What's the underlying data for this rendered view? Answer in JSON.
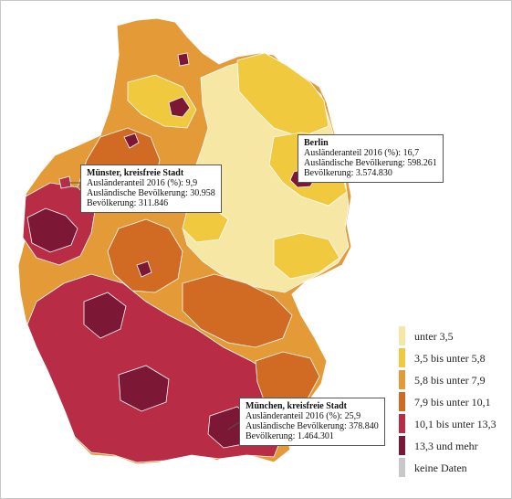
{
  "colors": {
    "c1": "#f6e7a5",
    "c2": "#f1c93e",
    "c3": "#e39a37",
    "c4": "#d16a22",
    "c5": "#b82c46",
    "c6": "#7d1736",
    "nodata": "#c8c8c8"
  },
  "legend": {
    "items": [
      {
        "label": "unter 3,5",
        "color": "#f6e7a5"
      },
      {
        "label": "3,5 bis unter 5,8",
        "color": "#f1c93e"
      },
      {
        "label": "5,8 bis unter 7,9",
        "color": "#e39a37"
      },
      {
        "label": "7,9 bis unter 10,1",
        "color": "#d16a22"
      },
      {
        "label": "10,1 bis unter 13,3",
        "color": "#b82c46"
      },
      {
        "label": "13,3 und mehr",
        "color": "#7d1736"
      },
      {
        "label": "keine Daten",
        "color": "#c8c8c8"
      }
    ]
  },
  "callouts": {
    "berlin": {
      "title": "Berlin",
      "line1": "Ausländeranteil 2016 (%): 16,7",
      "line2": "Ausländische Bevölkerung: 598.261",
      "line3": "Bevölkerung: 3.574.830"
    },
    "muenster": {
      "title": "Münster, kreisfreie Stadt",
      "line1": "Ausländeranteil 2016 (%): 9,9",
      "line2": "Ausländische Bevölkerung: 30.958",
      "line3": "Bevölkerung: 311.846"
    },
    "muenchen": {
      "title": "München, kreisfreie Stadt",
      "line1": "Ausländeranteil 2016 (%): 25,9",
      "line2": "Ausländische Bevölkerung: 378.840",
      "line3": "Bevölkerung: 1.464.301"
    }
  }
}
